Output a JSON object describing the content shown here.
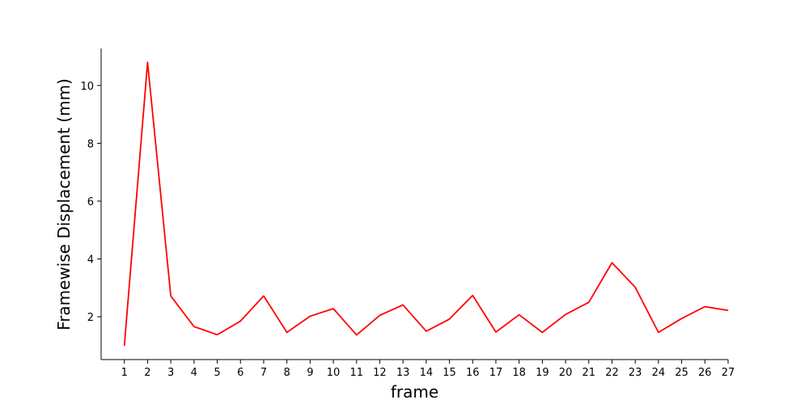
{
  "chart_data": {
    "type": "line",
    "title": "",
    "xlabel": "frame",
    "ylabel": "Framewise Displacement (mm)",
    "x": [
      1,
      2,
      3,
      4,
      5,
      6,
      7,
      8,
      9,
      10,
      11,
      12,
      13,
      14,
      15,
      16,
      17,
      18,
      19,
      20,
      21,
      22,
      23,
      24,
      25,
      26,
      27
    ],
    "series": [
      {
        "color": "#ff0000",
        "values": [
          1.0,
          10.8,
          2.72,
          1.66,
          1.38,
          1.85,
          2.72,
          1.46,
          2.02,
          2.28,
          1.37,
          2.05,
          2.41,
          1.5,
          1.92,
          2.74,
          1.47,
          2.07,
          1.46,
          2.08,
          2.5,
          3.87,
          3.02,
          1.46,
          1.94,
          2.35,
          2.22
        ]
      }
    ],
    "xlim": [
      0,
      27
    ],
    "ylim": [
      0.52,
      11.28
    ],
    "yticks": [
      2,
      4,
      6,
      8,
      10
    ],
    "xticks": [
      1,
      2,
      3,
      4,
      5,
      6,
      7,
      8,
      9,
      10,
      11,
      12,
      13,
      14,
      15,
      16,
      17,
      18,
      19,
      20,
      21,
      22,
      23,
      24,
      25,
      26,
      27
    ],
    "grid": false,
    "spines": [
      "left",
      "bottom"
    ]
  }
}
